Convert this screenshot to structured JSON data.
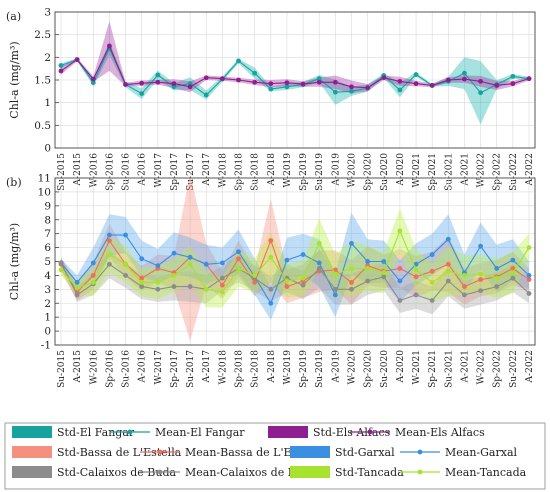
{
  "chart_data": [
    {
      "type": "line",
      "panel_label": "(a)",
      "ylabel": "Chl-a (mg/m³)",
      "ylim": [
        0,
        3
      ],
      "yticks": [
        0,
        0.5,
        1,
        1.5,
        2,
        2.5,
        3
      ],
      "ytick_labels": [
        "0",
        "0.5",
        "1",
        "1.5",
        "2",
        "2.5",
        "3"
      ],
      "grid": true,
      "categories": [
        "Su-2015",
        "A-2015",
        "W-2016",
        "Sp-2016",
        "Su-2016",
        "A-2016",
        "W-2017",
        "Sp-2017",
        "Su-2017",
        "A-2017",
        "W-2018",
        "Sp-2018",
        "Su-2018",
        "A-2018",
        "W-2019",
        "Sp-2019",
        "Su-2019",
        "A-2019",
        "W-2020",
        "Sp-2020",
        "Su-2020",
        "A-2020",
        "W-2021",
        "Sp-2021",
        "Su-2021",
        "A-2021",
        "W-2022",
        "Sp-2022",
        "Su-2022",
        "A-2022"
      ],
      "series": [
        {
          "name": "Mean-El Fangar",
          "std_name": "Std-El Fangar",
          "color": "#16a3a0",
          "band_color": "#16b5ae",
          "values": [
            1.82,
            1.95,
            1.44,
            2.2,
            1.4,
            1.2,
            1.61,
            1.35,
            1.42,
            1.17,
            1.52,
            1.92,
            1.65,
            1.3,
            1.35,
            1.4,
            1.53,
            1.23,
            1.25,
            1.32,
            1.6,
            1.28,
            1.62,
            1.38,
            1.47,
            1.65,
            1.22,
            1.4,
            1.58,
            1.53
          ],
          "std": [
            0.05,
            0.03,
            0.08,
            0.15,
            0.06,
            0.12,
            0.1,
            0.08,
            0.14,
            0.1,
            0.06,
            0.05,
            0.12,
            0.05,
            0.07,
            0.06,
            0.08,
            0.28,
            0.1,
            0.08,
            0.05,
            0.16,
            0.05,
            0.03,
            0.1,
            0.35,
            0.7,
            0.1,
            0.05,
            0.04
          ]
        },
        {
          "name": "Mean-Els Alfacs",
          "std_name": "Std-Els Alfacs",
          "color": "#8e1f8e",
          "band_color": "#a033a0",
          "values": [
            1.7,
            1.95,
            1.52,
            2.25,
            1.4,
            1.43,
            1.45,
            1.42,
            1.35,
            1.55,
            1.53,
            1.5,
            1.45,
            1.42,
            1.44,
            1.41,
            1.45,
            1.45,
            1.35,
            1.33,
            1.55,
            1.47,
            1.42,
            1.38,
            1.5,
            1.52,
            1.47,
            1.38,
            1.42,
            1.53
          ],
          "std": [
            0.08,
            0.04,
            0.06,
            0.55,
            0.04,
            0.06,
            0.05,
            0.1,
            0.12,
            0.05,
            0.05,
            0.05,
            0.06,
            0.08,
            0.08,
            0.06,
            0.1,
            0.15,
            0.14,
            0.08,
            0.05,
            0.1,
            0.06,
            0.04,
            0.06,
            0.08,
            0.12,
            0.1,
            0.06,
            0.04
          ]
        }
      ]
    },
    {
      "type": "line",
      "panel_label": "(b)",
      "ylabel": "Chl-a (mg/m³)",
      "ylim": [
        -1,
        11
      ],
      "yticks": [
        -1,
        0,
        1,
        2,
        3,
        4,
        5,
        6,
        7,
        8,
        9,
        10,
        11
      ],
      "ytick_labels": [
        "-1",
        "0",
        "1",
        "2",
        "3",
        "4",
        "5",
        "6",
        "7",
        "8",
        "9",
        "10",
        "11"
      ],
      "grid": true,
      "categories": [
        "Su-2015",
        "A-2015",
        "W-2016",
        "Sp-2016",
        "Su-2016",
        "A-2016",
        "W-2017",
        "Sp-2017",
        "Su-2017",
        "A-2017",
        "W-2018",
        "Sp-2018",
        "Su-2018",
        "A-2018",
        "W-2019",
        "Sp-2019",
        "Su-2019",
        "A-2019",
        "W-2020",
        "Sp-2020",
        "Su-2020",
        "A-2020",
        "W-2021",
        "Sp-2021",
        "Su-2021",
        "A-2021",
        "W-2022",
        "Sp-2022",
        "Su-2022",
        "A-2022"
      ],
      "series": [
        {
          "name": "Mean-Bassa de L'Estella",
          "std_name": "Std-Bassa de L'Estella",
          "color": "#f26d5b",
          "band_color": "#f5907f",
          "values": [
            4.8,
            2.8,
            4.0,
            6.5,
            4.8,
            3.8,
            4.5,
            4.2,
            5.3,
            4.8,
            3.3,
            5.2,
            3.5,
            6.5,
            3.2,
            3.6,
            4.3,
            4.4,
            3.5,
            4.7,
            4.3,
            4.5,
            3.9,
            4.3,
            4.8,
            3.2,
            3.7,
            3.9,
            4.5,
            3.7
          ],
          "std": [
            0.5,
            0.6,
            1.0,
            1.2,
            0.9,
            0.9,
            1.0,
            1.2,
            6.0,
            1.5,
            1.0,
            1.3,
            1.0,
            3.0,
            1.2,
            1.2,
            1.5,
            1.4,
            1.6,
            1.4,
            1.2,
            1.4,
            1.5,
            1.4,
            2.0,
            1.3,
            1.2,
            1.2,
            1.2,
            0.8
          ]
        },
        {
          "name": "Mean-Garxal",
          "std_name": "Std-Garxal",
          "color": "#3a8fe0",
          "band_color": "#5aa5ec",
          "values": [
            4.9,
            3.5,
            4.9,
            6.9,
            6.9,
            5.2,
            4.7,
            5.6,
            5.3,
            4.8,
            4.9,
            5.7,
            3.9,
            2.0,
            5.1,
            5.5,
            4.9,
            2.6,
            6.3,
            5.0,
            5.0,
            3.6,
            4.8,
            5.5,
            6.6,
            4.2,
            6.1,
            4.5,
            5.1,
            4.0
          ],
          "std": [
            0.3,
            0.5,
            1.1,
            1.5,
            1.3,
            1.3,
            1.2,
            1.5,
            1.4,
            1.4,
            1.1,
            1.6,
            1.3,
            1.2,
            1.6,
            1.5,
            1.7,
            1.6,
            2.2,
            1.6,
            1.5,
            1.5,
            1.5,
            1.5,
            1.8,
            1.3,
            1.7,
            1.7,
            1.5,
            1.0
          ]
        },
        {
          "name": "Mean-Calaixos de Buda",
          "std_name": "Std-Calaixos de Buda",
          "color": "#8c8c8c",
          "band_color": "#a4a4a4",
          "values": [
            4.9,
            2.6,
            3.4,
            4.8,
            4.0,
            3.2,
            3.0,
            3.2,
            3.2,
            3.0,
            3.8,
            4.5,
            3.8,
            3.0,
            3.8,
            3.3,
            4.5,
            3.0,
            3.0,
            3.6,
            3.9,
            2.2,
            2.6,
            2.2,
            3.6,
            2.6,
            2.9,
            3.2,
            3.8,
            2.7
          ],
          "std": [
            0.4,
            0.5,
            0.8,
            1.0,
            0.9,
            0.9,
            0.9,
            1.0,
            1.1,
            1.0,
            0.9,
            1.0,
            0.9,
            0.9,
            1.0,
            1.0,
            1.4,
            1.1,
            1.1,
            1.0,
            1.0,
            0.9,
            1.0,
            1.0,
            1.1,
            1.0,
            1.0,
            1.0,
            1.0,
            0.7
          ]
        },
        {
          "name": "Mean-Tancada",
          "std_name": "Std-Tancada",
          "color": "#a6e22e",
          "band_color": "#b8ef3c",
          "values": [
            4.4,
            3.1,
            3.5,
            5.5,
            4.8,
            3.5,
            3.5,
            4.0,
            4.8,
            3.0,
            2.8,
            4.5,
            4.0,
            5.3,
            3.6,
            3.8,
            6.3,
            4.1,
            4.5,
            4.5,
            4.2,
            7.2,
            4.4,
            3.5,
            4.3,
            4.0,
            4.1,
            3.8,
            4.2,
            6.0
          ],
          "std": [
            0.4,
            0.5,
            1.0,
            1.3,
            1.3,
            1.0,
            1.2,
            1.2,
            1.3,
            1.3,
            1.1,
            1.3,
            1.2,
            1.8,
            1.2,
            1.3,
            1.8,
            1.4,
            2.0,
            1.6,
            1.5,
            1.6,
            1.5,
            1.4,
            1.8,
            1.4,
            1.4,
            1.4,
            1.5,
            1.0
          ]
        }
      ]
    }
  ],
  "legend": [
    {
      "label": "Std-El Fangar",
      "kind": "band",
      "color": "#16a3a0"
    },
    {
      "label": "Mean-El Fangar",
      "kind": "line",
      "color": "#16a3a0"
    },
    {
      "label": "Std-Els Alfacs",
      "kind": "band",
      "color": "#8e1f8e"
    },
    {
      "label": "Mean-Els Alfacs",
      "kind": "line",
      "color": "#8e1f8e"
    },
    {
      "label": "Std-Bassa de L'Estella",
      "kind": "band",
      "color": "#f5907f"
    },
    {
      "label": "Mean-Bassa de L'Estella",
      "kind": "line",
      "color": "#f26d5b"
    },
    {
      "label": "Std-Garxal",
      "kind": "band",
      "color": "#3a8fe0"
    },
    {
      "label": "Mean-Garxal",
      "kind": "line",
      "color": "#3a8fe0"
    },
    {
      "label": "Std-Calaixos de Buda",
      "kind": "band",
      "color": "#8c8c8c"
    },
    {
      "label": "Mean-Calaixos de Buda",
      "kind": "line",
      "color": "#8c8c8c"
    },
    {
      "label": "Std-Tancada",
      "kind": "band",
      "color": "#a6e22e"
    },
    {
      "label": "Mean-Tancada",
      "kind": "line",
      "color": "#a6e22e"
    }
  ]
}
